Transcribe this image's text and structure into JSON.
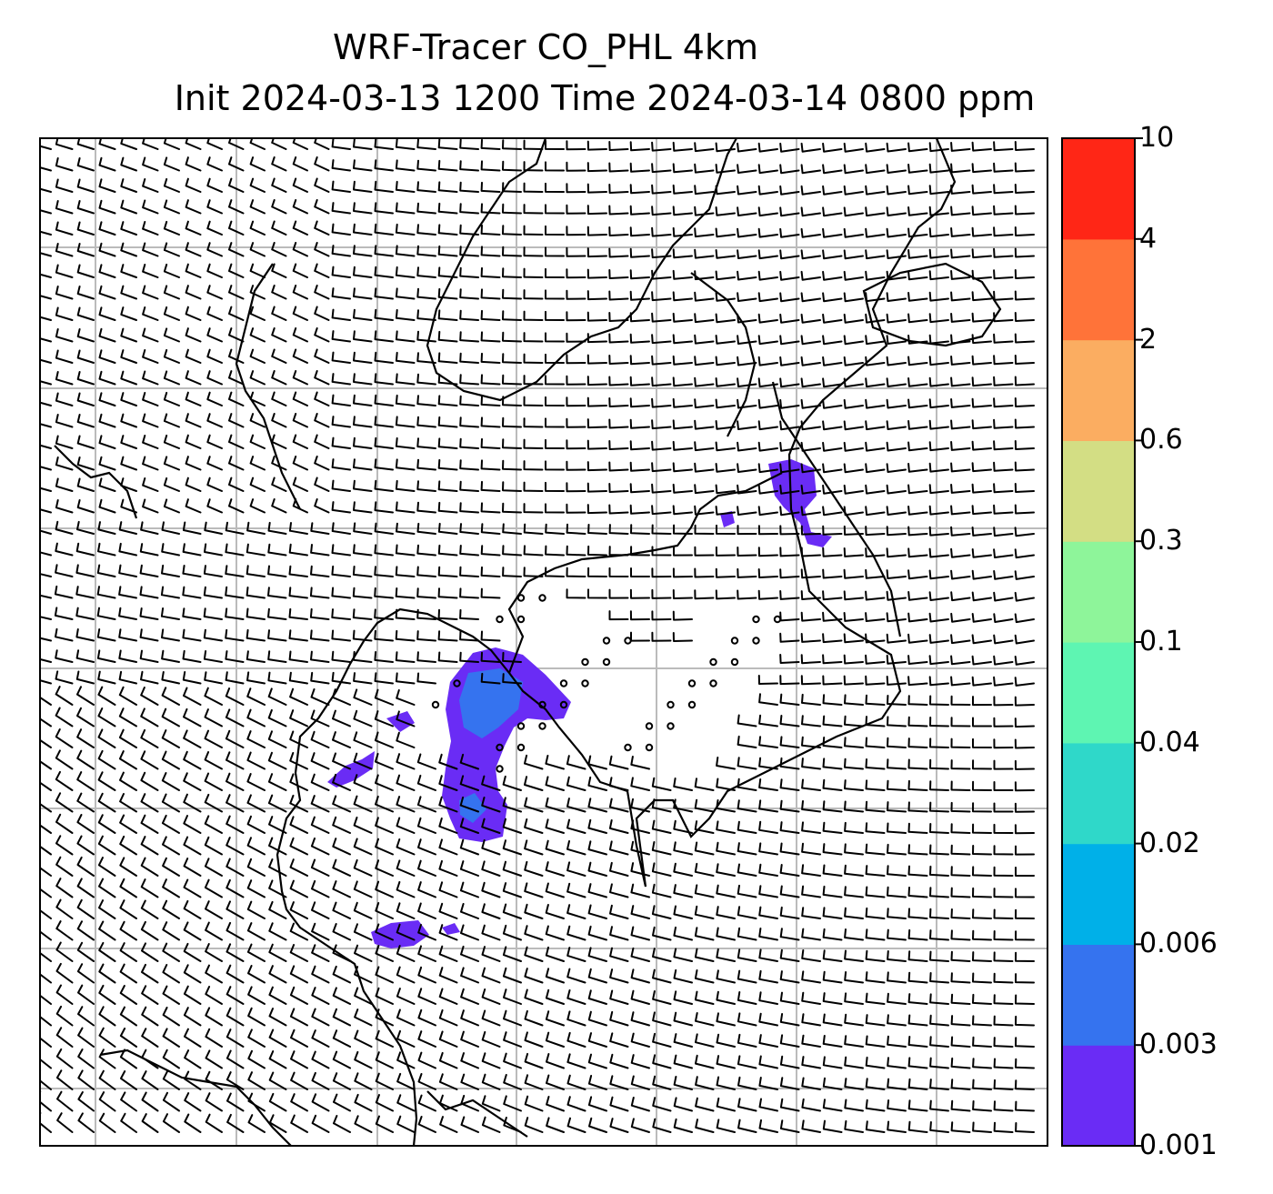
{
  "title": {
    "line1": "WRF-Tracer CO_PHL 4km",
    "line2": "Init 2024-03-13 1200 Time 2024-03-14 0800 ppm"
  },
  "colorbar": {
    "levels": [
      "0.001",
      "0.003",
      "0.006",
      "0.02",
      "0.04",
      "0.1",
      "0.3",
      "0.6",
      "2",
      "4",
      "10"
    ],
    "colors": [
      "#6a2cf5",
      "#3573ef",
      "#00b0e8",
      "#2fd8c9",
      "#5ef5b2",
      "#8ef59a",
      "#d3de84",
      "#fbad61",
      "#ff7339",
      "#ff2616"
    ]
  },
  "map": {
    "barb_color": "#000000",
    "gridline_color": "#bbbbbb",
    "coastline_color": "#000000"
  }
}
